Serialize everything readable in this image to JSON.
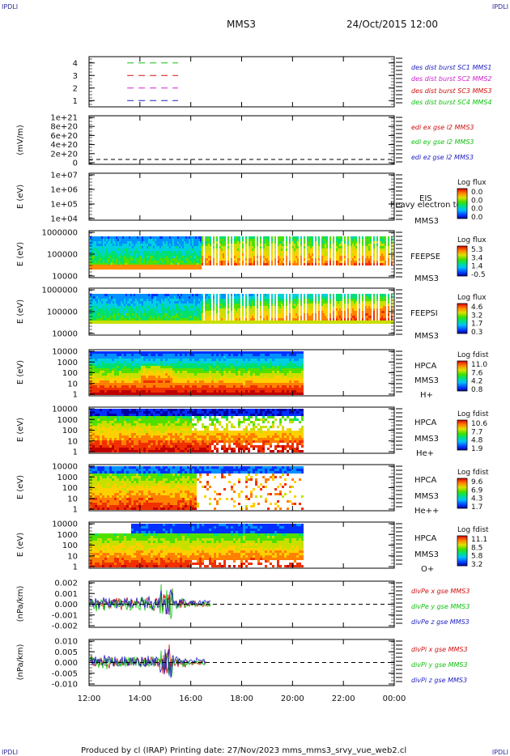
{
  "corner_label": "IPDLI",
  "header": {
    "spacecraft": "MMS3",
    "datetime": "24/Oct/2015 12:00"
  },
  "footer": "Produced by cl (IRAP)   Printing date: 27/Nov/2023   mms_mms3_srvy_vue_web2.cl",
  "chart_data": [
    {
      "type": "line",
      "panel": "burst",
      "ylim": [
        0.5,
        4.5
      ],
      "yticks": [
        "4",
        "3",
        "2",
        "1"
      ],
      "series": [
        {
          "name": "des dist burst SC1 MMS1",
          "color": "#1f1fc0",
          "y": 1,
          "x_hours": [
            13.5,
            15.5
          ]
        },
        {
          "name": "des dist burst SC2 MMS2",
          "color": "#d020d0",
          "y": 2,
          "x_hours": [
            13.5,
            15.5
          ]
        },
        {
          "name": "des dist burst SC3 MMS3",
          "color": "#d01010",
          "y": 3,
          "x_hours": [
            13.5,
            15.5
          ]
        },
        {
          "name": "des dist burst SC4 MMS4",
          "color": "#10c010",
          "y": 4,
          "x_hours": [
            13.5,
            15.5
          ]
        }
      ]
    },
    {
      "type": "line",
      "panel": "edi",
      "ylabel": "(mV/m)",
      "yticks": [
        "1e+21",
        "8e+20",
        "6e+20",
        "4e+20",
        "2e+20",
        "0"
      ],
      "series": [
        {
          "name": "edi ex gse l2 MMS3",
          "color": "#d01010"
        },
        {
          "name": "edi ey gse l2 MMS3",
          "color": "#10c010"
        },
        {
          "name": "edi ez gse l2 MMS3",
          "color": "#1f1fc0"
        }
      ]
    },
    {
      "type": "heatmap",
      "panel": "eis",
      "ylabel": "E (eV)",
      "yticks": [
        "1e+07",
        "1e+06",
        "1e+05",
        "1e+04"
      ],
      "instrument": [
        "EIS",
        "MMS3"
      ],
      "overlay_text": "heavy electron tof",
      "colorbar_title": "Log flux",
      "colorbar_ticks": [
        "0.0",
        "0.0",
        "0.0",
        "0.0"
      ]
    },
    {
      "type": "heatmap",
      "panel": "feepse",
      "ylabel": "E (eV)",
      "yticks": [
        "1000000",
        "100000",
        "10000"
      ],
      "instrument": [
        "FEEPSE",
        "MMS3"
      ],
      "colorbar_title": "Log flux",
      "colorbar_ticks": [
        "5.3",
        "3.4",
        "1.4",
        "-0.5"
      ]
    },
    {
      "type": "heatmap",
      "panel": "feepsi",
      "ylabel": "E (eV)",
      "yticks": [
        "1000000",
        "100000",
        "10000"
      ],
      "instrument": [
        "FEEPSI",
        "MMS3"
      ],
      "colorbar_title": "Log flux",
      "colorbar_ticks": [
        "4.6",
        "3.2",
        "1.7",
        "0.3"
      ]
    },
    {
      "type": "heatmap",
      "panel": "hpca_h",
      "ylabel": "E (eV)",
      "yticks": [
        "10000",
        "1000",
        "100",
        "10",
        "1"
      ],
      "instrument": [
        "HPCA",
        "MMS3"
      ],
      "species": "H+",
      "colorbar_title": "Log fdist",
      "colorbar_ticks": [
        "11.0",
        "7.6",
        "4.2",
        "0.8"
      ]
    },
    {
      "type": "heatmap",
      "panel": "hpca_he",
      "ylabel": "E (eV)",
      "yticks": [
        "10000",
        "1000",
        "100",
        "10",
        "1"
      ],
      "instrument": [
        "HPCA",
        "MMS3"
      ],
      "species": "He+",
      "colorbar_title": "Log fdist",
      "colorbar_ticks": [
        "10.6",
        "7.7",
        "4.8",
        "1.9"
      ]
    },
    {
      "type": "heatmap",
      "panel": "hpca_hepp",
      "ylabel": "E (eV)",
      "yticks": [
        "10000",
        "1000",
        "100",
        "10",
        "1"
      ],
      "instrument": [
        "HPCA",
        "MMS3"
      ],
      "species": "He++",
      "colorbar_title": "Log fdist",
      "colorbar_ticks": [
        "9.6",
        "6.9",
        "4.3",
        "1.7"
      ]
    },
    {
      "type": "heatmap",
      "panel": "hpca_o",
      "ylabel": "E (eV)",
      "yticks": [
        "10000",
        "1000",
        "100",
        "10",
        "1"
      ],
      "instrument": [
        "HPCA",
        "MMS3"
      ],
      "species": "O+",
      "colorbar_title": "Log fdist",
      "colorbar_ticks": [
        "11.1",
        "8.5",
        "5.8",
        "3.2"
      ]
    },
    {
      "type": "line",
      "panel": "divpe",
      "ylabel": "(nPa/km)",
      "ylim": [
        -0.002,
        0.002
      ],
      "yticks": [
        "0.002",
        "0.001",
        "0.000",
        "-0.001",
        "-0.002"
      ],
      "series": [
        {
          "name": "divPe x gse MMS3",
          "color": "#d01010"
        },
        {
          "name": "divPe y gse MMS3",
          "color": "#10c010"
        },
        {
          "name": "divPe z gse MMS3",
          "color": "#1f1fc0"
        }
      ]
    },
    {
      "type": "line",
      "panel": "divpi",
      "ylabel": "(nPa/km)",
      "ylim": [
        -0.012,
        0.012
      ],
      "yticks": [
        "0.010",
        "0.005",
        "0.000",
        "-0.005",
        "-0.010"
      ],
      "series": [
        {
          "name": "divPi x gse MMS3",
          "color": "#d01010"
        },
        {
          "name": "divPi y gse MMS3",
          "color": "#10c010"
        },
        {
          "name": "divPi z gse MMS3",
          "color": "#1f1fc0"
        }
      ]
    }
  ],
  "time_axis": {
    "xlim_hours": [
      12,
      24
    ],
    "ticks": [
      "12:00",
      "14:00",
      "16:00",
      "18:00",
      "20:00",
      "22:00",
      "00:00"
    ]
  }
}
